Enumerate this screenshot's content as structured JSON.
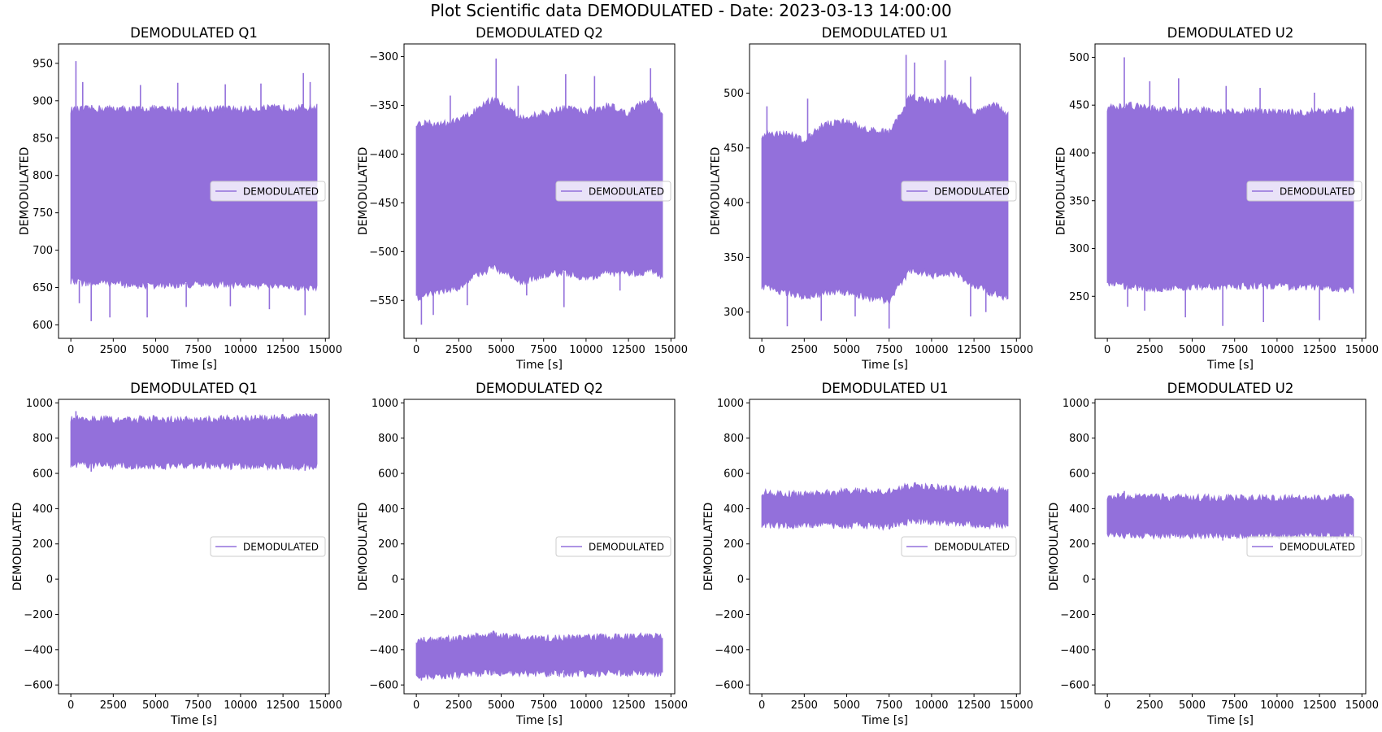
{
  "figure": {
    "title": "Plot Scientific data DEMODULATED - Date: 2023-03-13 14:00:00"
  },
  "colors": {
    "series": "#9370DB",
    "axes": "#000000",
    "legend_border": "#cccccc"
  },
  "chart_data": [
    {
      "type": "line",
      "title": "DEMODULATED Q1",
      "xlabel": "Time [s]",
      "ylabel": "DEMODULATED",
      "legend": "right",
      "grid": false,
      "xlim": [
        -725,
        15225
      ],
      "ylim": [
        582,
        976
      ],
      "xticks": [
        0,
        2500,
        5000,
        7500,
        10000,
        12500,
        15000
      ],
      "yticks": [
        600,
        650,
        700,
        750,
        800,
        850,
        900,
        950
      ],
      "series": [
        {
          "name": "DEMODULATED",
          "x_range": [
            0,
            14500
          ],
          "band": {
            "time": [
              0,
              1250,
              2500,
              3750,
              5000,
              6250,
              7500,
              8750,
              10000,
              11250,
              12500,
              13750,
              14500
            ],
            "upper": [
              885,
              887,
              887,
              886,
              887,
              885,
              886,
              887,
              886,
              887,
              888,
              888,
              889
            ],
            "lower": [
              660,
              658,
              658,
              655,
              655,
              656,
              656,
              657,
              656,
              655,
              654,
              653,
              652
            ]
          },
          "spikes_max": [
            [
              300,
              953
            ],
            [
              700,
              925
            ],
            [
              4100,
              921
            ],
            [
              6300,
              924
            ],
            [
              9100,
              922
            ],
            [
              11200,
              923
            ],
            [
              13700,
              937
            ],
            [
              14100,
              925
            ]
          ],
          "spikes_min": [
            [
              500,
              629
            ],
            [
              1200,
              605
            ],
            [
              2300,
              610
            ],
            [
              4500,
              610
            ],
            [
              6800,
              624
            ],
            [
              9400,
              625
            ],
            [
              11700,
              621
            ],
            [
              13800,
              613
            ]
          ]
        }
      ]
    },
    {
      "type": "line",
      "title": "DEMODULATED Q2",
      "xlabel": "Time [s]",
      "ylabel": "DEMODULATED",
      "legend": "right",
      "grid": false,
      "xlim": [
        -725,
        15225
      ],
      "ylim": [
        -589,
        -287
      ],
      "xticks": [
        0,
        2500,
        5000,
        7500,
        10000,
        12500,
        15000
      ],
      "yticks": [
        -550,
        -500,
        -450,
        -400,
        -350,
        -300
      ],
      "series": [
        {
          "name": "DEMODULATED",
          "x_range": [
            0,
            14500
          ],
          "band": {
            "time": [
              0,
              1250,
              2500,
              3750,
              4500,
              5000,
              6250,
              7500,
              8750,
              10000,
              11250,
              12500,
              13750,
              14500
            ],
            "upper": [
              -370,
              -370,
              -368,
              -355,
              -345,
              -350,
              -365,
              -360,
              -355,
              -358,
              -352,
              -360,
              -345,
              -360
            ],
            "lower": [
              -545,
              -540,
              -535,
              -520,
              -515,
              -518,
              -530,
              -522,
              -520,
              -525,
              -520,
              -522,
              -518,
              -525
            ]
          },
          "spikes_max": [
            [
              2000,
              -340
            ],
            [
              4700,
              -302
            ],
            [
              6000,
              -330
            ],
            [
              8800,
              -318
            ],
            [
              10500,
              -320
            ],
            [
              13800,
              -312
            ]
          ],
          "spikes_min": [
            [
              300,
              -575
            ],
            [
              1000,
              -565
            ],
            [
              3000,
              -555
            ],
            [
              6500,
              -545
            ],
            [
              8700,
              -557
            ],
            [
              12000,
              -540
            ]
          ]
        }
      ]
    },
    {
      "type": "line",
      "title": "DEMODULATED U1",
      "xlabel": "Time [s]",
      "ylabel": "DEMODULATED",
      "legend": "right",
      "grid": false,
      "xlim": [
        -725,
        15225
      ],
      "ylim": [
        276,
        545
      ],
      "xticks": [
        0,
        2500,
        5000,
        7500,
        10000,
        12500,
        15000
      ],
      "yticks": [
        300,
        350,
        400,
        450,
        500
      ],
      "series": [
        {
          "name": "DEMODULATED",
          "x_range": [
            0,
            14500
          ],
          "band": {
            "time": [
              0,
              1250,
              2500,
              3750,
              5000,
              6250,
              7500,
              8750,
              10000,
              11250,
              12500,
              13750,
              14500
            ],
            "upper": [
              460,
              462,
              455,
              470,
              472,
              465,
              462,
              495,
              490,
              495,
              480,
              488,
              478
            ],
            "lower": [
              325,
              320,
              315,
              320,
              320,
              315,
              312,
              340,
              335,
              338,
              325,
              318,
              315
            ]
          },
          "spikes_max": [
            [
              300,
              488
            ],
            [
              2700,
              495
            ],
            [
              8500,
              535
            ],
            [
              9000,
              528
            ],
            [
              10800,
              530
            ],
            [
              12300,
              515
            ]
          ],
          "spikes_min": [
            [
              1500,
              287
            ],
            [
              3500,
              292
            ],
            [
              5500,
              296
            ],
            [
              7500,
              285
            ],
            [
              12300,
              296
            ],
            [
              13200,
              300
            ]
          ]
        }
      ]
    },
    {
      "type": "line",
      "title": "DEMODULATED U2",
      "xlabel": "Time [s]",
      "ylabel": "DEMODULATED",
      "legend": "right",
      "grid": false,
      "xlim": [
        -725,
        15225
      ],
      "ylim": [
        206,
        514
      ],
      "xticks": [
        0,
        2500,
        5000,
        7500,
        10000,
        12500,
        15000
      ],
      "yticks": [
        250,
        300,
        350,
        400,
        450,
        500
      ],
      "series": [
        {
          "name": "DEMODULATED",
          "x_range": [
            0,
            14500
          ],
          "band": {
            "time": [
              0,
              1250,
              2500,
              3750,
              5000,
              6250,
              7500,
              8750,
              10000,
              11250,
              12500,
              13750,
              14500
            ],
            "upper": [
              445,
              448,
              445,
              442,
              443,
              442,
              441,
              442,
              441,
              440,
              441,
              442,
              445
            ],
            "lower": [
              265,
              262,
              260,
              261,
              262,
              262,
              262,
              263,
              262,
              262,
              261,
              260,
              258
            ]
          },
          "spikes_max": [
            [
              1000,
              500
            ],
            [
              2500,
              475
            ],
            [
              4200,
              478
            ],
            [
              7000,
              470
            ],
            [
              9000,
              468
            ],
            [
              12200,
              463
            ]
          ],
          "spikes_min": [
            [
              1200,
              239
            ],
            [
              2200,
              235
            ],
            [
              4600,
              228
            ],
            [
              6800,
              219
            ],
            [
              9200,
              223
            ],
            [
              12500,
              225
            ]
          ]
        }
      ]
    },
    {
      "type": "line",
      "title": "DEMODULATED Q1",
      "xlabel": "Time [s]",
      "ylabel": "DEMODULATED",
      "legend": "right",
      "grid": false,
      "xlim": [
        -725,
        15225
      ],
      "ylim": [
        -650,
        1020
      ],
      "xticks": [
        0,
        2500,
        5000,
        7500,
        10000,
        12500,
        15000
      ],
      "yticks": [
        -600,
        -400,
        -200,
        0,
        200,
        400,
        600,
        800,
        1000
      ],
      "series": [
        {
          "name": "DEMODULATED",
          "x_range": [
            0,
            14500
          ],
          "band": {
            "time": [
              0,
              2500,
              5000,
              7500,
              10000,
              12500,
              14500
            ],
            "upper": [
              900,
              895,
              898,
              895,
              900,
              905,
              910
            ],
            "lower": [
              660,
              655,
              652,
              655,
              652,
              650,
              648
            ]
          },
          "spikes_max": [
            [
              300,
              953
            ],
            [
              13700,
              937
            ]
          ],
          "spikes_min": [
            [
              1200,
              610
            ],
            [
              13800,
              615
            ]
          ]
        }
      ]
    },
    {
      "type": "line",
      "title": "DEMODULATED Q2",
      "xlabel": "Time [s]",
      "ylabel": "DEMODULATED",
      "legend": "right",
      "grid": false,
      "xlim": [
        -725,
        15225
      ],
      "ylim": [
        -650,
        1020
      ],
      "xticks": [
        0,
        2500,
        5000,
        7500,
        10000,
        12500,
        15000
      ],
      "yticks": [
        -600,
        -400,
        -200,
        0,
        200,
        400,
        600,
        800,
        1000
      ],
      "series": [
        {
          "name": "DEMODULATED",
          "x_range": [
            0,
            14500
          ],
          "band": {
            "time": [
              0,
              2500,
              4500,
              5000,
              7500,
              10000,
              12500,
              14500
            ],
            "upper": [
              -355,
              -350,
              -320,
              -330,
              -345,
              -340,
              -335,
              -335
            ],
            "lower": [
              -540,
              -535,
              -515,
              -520,
              -522,
              -525,
              -520,
              -525
            ]
          },
          "spikes_max": [
            [
              4700,
              -302
            ],
            [
              13800,
              -312
            ]
          ],
          "spikes_min": [
            [
              300,
              -575
            ],
            [
              8700,
              -557
            ]
          ]
        }
      ]
    },
    {
      "type": "line",
      "title": "DEMODULATED U1",
      "xlabel": "Time [s]",
      "ylabel": "DEMODULATED",
      "legend": "right",
      "grid": false,
      "xlim": [
        -725,
        15225
      ],
      "ylim": [
        -650,
        1020
      ],
      "xticks": [
        0,
        2500,
        5000,
        7500,
        10000,
        12500,
        15000
      ],
      "yticks": [
        -600,
        -400,
        -200,
        0,
        200,
        400,
        600,
        800,
        1000
      ],
      "series": [
        {
          "name": "DEMODULATED",
          "x_range": [
            0,
            14500
          ],
          "band": {
            "time": [
              0,
              2500,
              5000,
              7500,
              8750,
              10000,
              12500,
              14500
            ],
            "upper": [
              480,
              470,
              490,
              485,
              520,
              510,
              500,
              490
            ],
            "lower": [
              320,
              315,
              318,
              310,
              340,
              335,
              322,
              315
            ]
          },
          "spikes_max": [
            [
              8500,
              535
            ],
            [
              10800,
              530
            ]
          ],
          "spikes_min": [
            [
              1500,
              287
            ],
            [
              7500,
              285
            ]
          ]
        }
      ]
    },
    {
      "type": "line",
      "title": "DEMODULATED U2",
      "xlabel": "Time [s]",
      "ylabel": "DEMODULATED",
      "legend": "right",
      "grid": false,
      "xlim": [
        -725,
        15225
      ],
      "ylim": [
        -650,
        1020
      ],
      "xticks": [
        0,
        2500,
        5000,
        7500,
        10000,
        12500,
        15000
      ],
      "yticks": [
        -600,
        -400,
        -200,
        0,
        200,
        400,
        600,
        800,
        1000
      ],
      "series": [
        {
          "name": "DEMODULATED",
          "x_range": [
            0,
            14500
          ],
          "band": {
            "time": [
              0,
              2500,
              5000,
              7500,
              10000,
              12500,
              14500
            ],
            "upper": [
              460,
              455,
              452,
              450,
              450,
              452,
              455
            ],
            "lower": [
              262,
              258,
              259,
              260,
              259,
              258,
              256
            ]
          },
          "spikes_max": [
            [
              1000,
              500
            ],
            [
              4200,
              478
            ]
          ],
          "spikes_min": [
            [
              6800,
              219
            ],
            [
              9200,
              223
            ]
          ]
        }
      ]
    }
  ]
}
